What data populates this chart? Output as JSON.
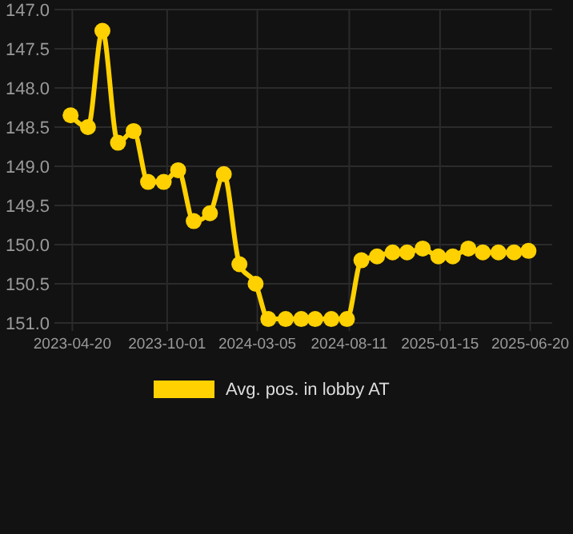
{
  "chart_data": {
    "type": "line",
    "x": [
      "2023-04-17",
      "2023-05-17",
      "2023-06-11",
      "2023-07-08",
      "2023-08-04",
      "2023-08-29",
      "2023-09-25",
      "2023-10-20",
      "2023-11-16",
      "2023-12-14",
      "2024-01-07",
      "2024-02-03",
      "2024-03-02",
      "2024-03-24",
      "2024-04-23",
      "2024-05-20",
      "2024-06-13",
      "2024-07-11",
      "2024-08-07",
      "2024-09-01",
      "2024-09-28",
      "2024-10-25",
      "2024-11-19",
      "2024-12-16",
      "2025-01-12",
      "2025-02-06",
      "2025-03-05",
      "2025-03-30",
      "2025-04-26",
      "2025-05-23",
      "2025-06-17"
    ],
    "series": [
      {
        "name": "Avg. pos. in lobby AT",
        "color": "#ffd100",
        "values": [
          148.35,
          148.5,
          147.27,
          148.7,
          148.55,
          149.2,
          149.2,
          149.05,
          149.7,
          149.6,
          149.1,
          150.25,
          150.5,
          150.95,
          150.95,
          150.95,
          150.95,
          150.95,
          150.95,
          150.2,
          150.15,
          150.1,
          150.1,
          150.05,
          150.15,
          150.15,
          150.05,
          150.1,
          150.1,
          150.1,
          150.08
        ]
      }
    ],
    "xlim": [
      "2023-03-20",
      "2025-07-28"
    ],
    "xticks": [
      "2023-04-20",
      "2023-10-01",
      "2024-03-05",
      "2024-08-11",
      "2025-01-15",
      "2025-06-20"
    ],
    "ylim": [
      151.0,
      147.0
    ],
    "yticks": [
      {
        "value": 147,
        "label": "147.0"
      },
      147.5,
      {
        "value": 148,
        "label": "148.0"
      },
      148.5,
      {
        "value": 149,
        "label": "149.0"
      },
      149.5,
      {
        "value": 150,
        "label": "150.0"
      },
      150.5,
      {
        "value": 151,
        "label": "151.0"
      }
    ],
    "grid": true,
    "legend": "bottom",
    "marker": "circle",
    "line_style": "solid"
  }
}
